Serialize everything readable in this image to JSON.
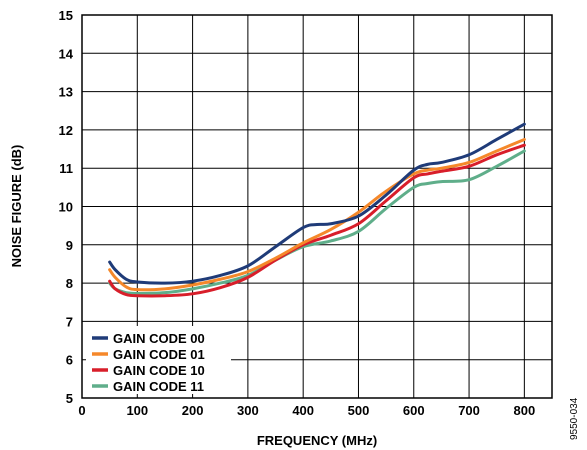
{
  "chart_data": {
    "type": "line",
    "title": "",
    "xlabel": "FREQUENCY (MHz)",
    "ylabel": "NOISE FIGURE (dB)",
    "xlim": [
      0,
      850
    ],
    "ylim": [
      5,
      15
    ],
    "xticks": [
      0,
      100,
      200,
      300,
      400,
      500,
      600,
      700,
      800
    ],
    "yticks": [
      5,
      6,
      7,
      8,
      9,
      10,
      11,
      12,
      13,
      14,
      15
    ],
    "grid": true,
    "legend_position": "bottom-left",
    "figure_id": "9550-034",
    "series": [
      {
        "name": "GAIN CODE 00",
        "color": "#1f3b78",
        "x": [
          50,
          60,
          80,
          100,
          150,
          200,
          250,
          300,
          350,
          400,
          425,
          450,
          500,
          550,
          600,
          625,
          650,
          700,
          750,
          800
        ],
        "y": [
          8.55,
          8.35,
          8.1,
          8.03,
          8.0,
          8.05,
          8.2,
          8.45,
          8.95,
          9.45,
          9.53,
          9.55,
          9.75,
          10.3,
          10.95,
          11.1,
          11.15,
          11.35,
          11.75,
          12.15
        ]
      },
      {
        "name": "GAIN CODE 01",
        "color": "#f5882a",
        "x": [
          50,
          60,
          80,
          100,
          150,
          200,
          250,
          300,
          350,
          400,
          450,
          500,
          550,
          600,
          625,
          650,
          700,
          750,
          800
        ],
        "y": [
          8.35,
          8.15,
          7.9,
          7.83,
          7.85,
          7.95,
          8.1,
          8.3,
          8.65,
          9.05,
          9.4,
          9.85,
          10.4,
          10.85,
          10.95,
          11.0,
          11.15,
          11.45,
          11.75
        ]
      },
      {
        "name": "GAIN CODE 10",
        "color": "#d81e2a",
        "x": [
          50,
          60,
          80,
          100,
          150,
          200,
          250,
          300,
          350,
          400,
          450,
          500,
          550,
          600,
          625,
          650,
          700,
          750,
          800
        ],
        "y": [
          8.05,
          7.85,
          7.7,
          7.67,
          7.67,
          7.72,
          7.88,
          8.15,
          8.6,
          9.0,
          9.25,
          9.55,
          10.15,
          10.75,
          10.85,
          10.92,
          11.05,
          11.35,
          11.6
        ]
      },
      {
        "name": "GAIN CODE 11",
        "color": "#5fae8a",
        "x": [
          50,
          60,
          80,
          100,
          150,
          200,
          250,
          300,
          350,
          400,
          450,
          500,
          550,
          600,
          625,
          650,
          700,
          750,
          800
        ],
        "y": [
          8.0,
          7.85,
          7.75,
          7.73,
          7.75,
          7.85,
          8.0,
          8.2,
          8.6,
          8.95,
          9.1,
          9.35,
          9.95,
          10.5,
          10.6,
          10.65,
          10.7,
          11.05,
          11.45
        ]
      }
    ]
  }
}
